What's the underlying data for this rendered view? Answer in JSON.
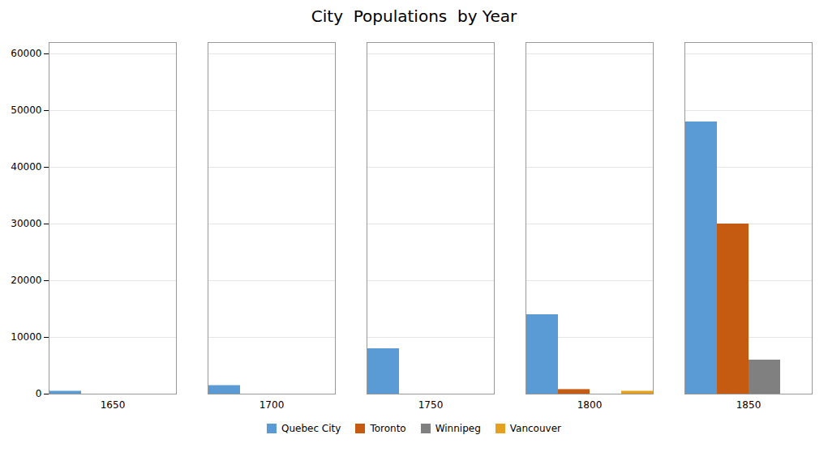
{
  "chart_data": {
    "type": "bar",
    "title": "City  Populations  by Year",
    "categories": [
      "1650",
      "1700",
      "1750",
      "1800",
      "1850"
    ],
    "series": [
      {
        "name": "Quebec City",
        "color": "#5b9bd5",
        "values": [
          500,
          1500,
          8000,
          14000,
          48000
        ]
      },
      {
        "name": "Toronto",
        "color": "#c55a11",
        "values": [
          0,
          0,
          0,
          800,
          30000
        ]
      },
      {
        "name": "Winnipeg",
        "color": "#808080",
        "values": [
          0,
          0,
          0,
          0,
          6000
        ]
      },
      {
        "name": "Vancouver",
        "color": "#e6a020",
        "values": [
          0,
          0,
          0,
          500,
          0
        ]
      }
    ],
    "ylim": [
      0,
      62000
    ],
    "yticks": [
      0,
      10000,
      20000,
      30000,
      40000,
      50000,
      60000
    ],
    "grid": true,
    "legend": "bottom"
  }
}
